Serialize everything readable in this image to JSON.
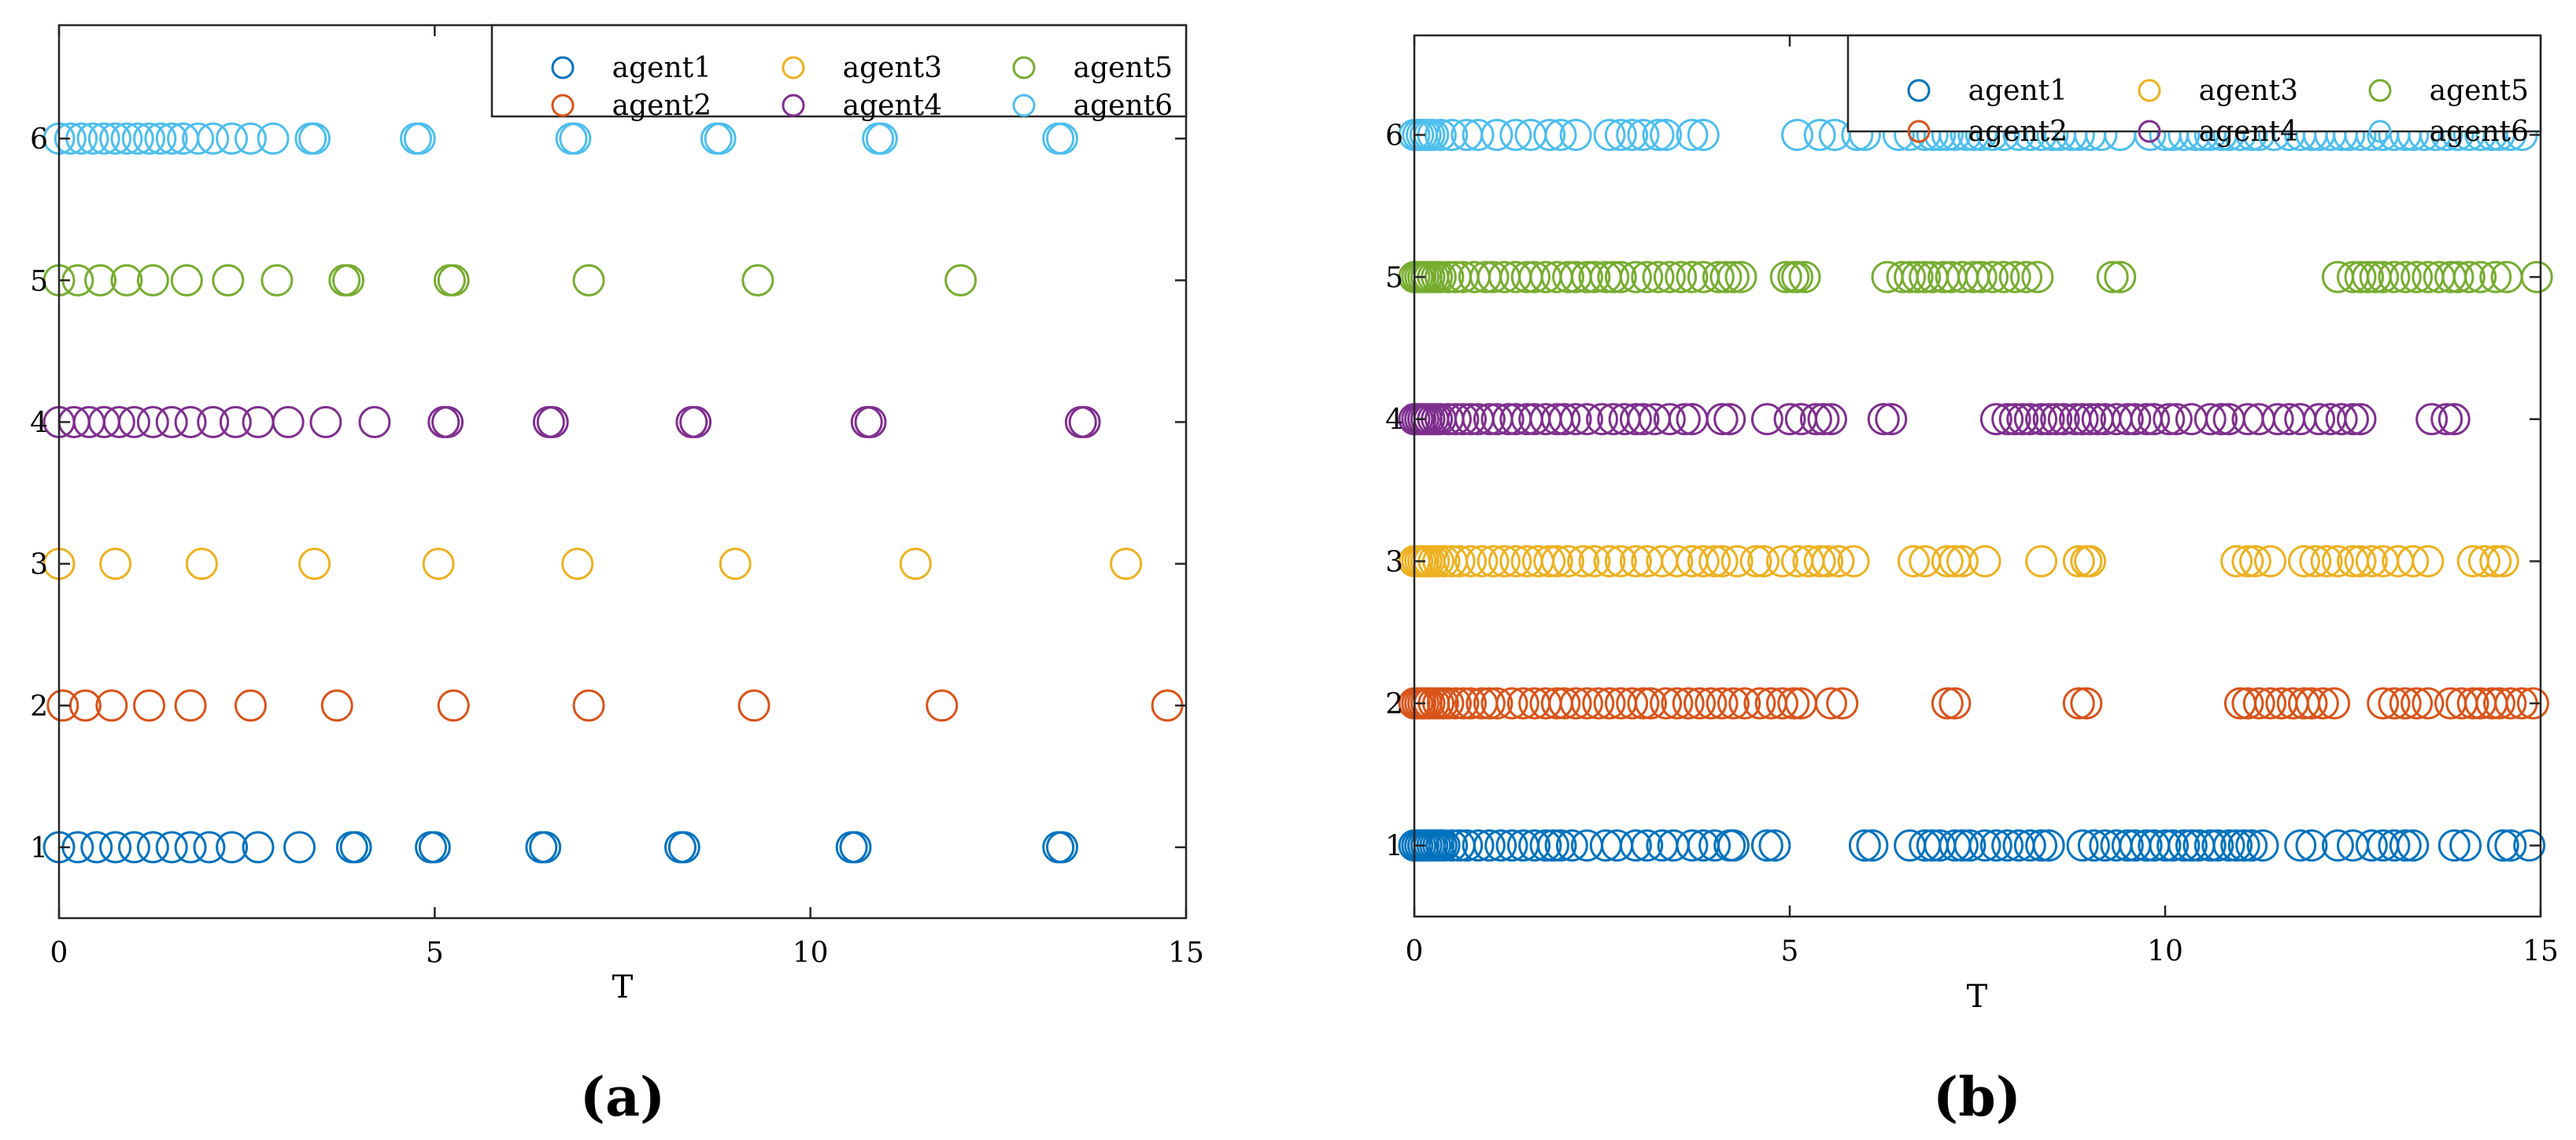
{
  "chart_data": [
    {
      "type": "scatter",
      "panel_label": "(a)",
      "xlabel": "T",
      "ylabel": "",
      "xlim": [
        0,
        15
      ],
      "ylim": [
        0.5,
        6.8
      ],
      "xticks": [
        0,
        5,
        10,
        15
      ],
      "yticks": [
        1,
        2,
        3,
        4,
        5,
        6
      ],
      "grid": false,
      "legend_position": "top-right",
      "series": [
        {
          "name": "agent1",
          "color": "#0072BD",
          "y": 1,
          "x": [
            0.0,
            0.25,
            0.5,
            0.75,
            1.0,
            1.25,
            1.5,
            1.75,
            2.0,
            2.3,
            2.65,
            3.2,
            3.9,
            3.95,
            4.95,
            5.0,
            6.42,
            6.47,
            8.27,
            8.32,
            10.55,
            10.6,
            13.3,
            13.35
          ]
        },
        {
          "name": "agent2",
          "color": "#D95319",
          "y": 2,
          "x": [
            0.05,
            0.35,
            0.7,
            1.2,
            1.75,
            2.55,
            3.7,
            5.25,
            7.05,
            9.25,
            11.75,
            14.75
          ]
        },
        {
          "name": "agent3",
          "color": "#EDB120",
          "y": 3,
          "x": [
            0.0,
            0.75,
            1.9,
            3.4,
            5.05,
            6.9,
            9.0,
            11.4,
            14.2
          ]
        },
        {
          "name": "agent4",
          "color": "#7E2F8E",
          "y": 4,
          "x": [
            0.0,
            0.2,
            0.4,
            0.6,
            0.8,
            1.0,
            1.25,
            1.5,
            1.75,
            2.05,
            2.35,
            2.65,
            3.05,
            3.55,
            4.2,
            5.12,
            5.17,
            6.52,
            6.57,
            8.42,
            8.47,
            10.75,
            10.8,
            13.6,
            13.65
          ]
        },
        {
          "name": "agent5",
          "color": "#77AC30",
          "y": 5,
          "x": [
            0.0,
            0.25,
            0.55,
            0.9,
            1.25,
            1.7,
            2.25,
            2.9,
            3.8,
            3.85,
            5.2,
            5.25,
            7.05,
            9.3,
            12.0
          ]
        },
        {
          "name": "agent6",
          "color": "#4DBEEE",
          "y": 6,
          "x": [
            0.0,
            0.15,
            0.3,
            0.45,
            0.6,
            0.75,
            0.9,
            1.05,
            1.2,
            1.35,
            1.5,
            1.65,
            1.85,
            2.05,
            2.3,
            2.55,
            2.85,
            3.35,
            3.4,
            4.75,
            4.8,
            6.82,
            6.87,
            8.75,
            8.8,
            10.9,
            10.95,
            13.3,
            13.35
          ]
        }
      ]
    },
    {
      "type": "scatter",
      "panel_label": "(b)",
      "xlabel": "T",
      "ylabel": "",
      "xlim": [
        0,
        15
      ],
      "ylim": [
        0.5,
        6.7
      ],
      "xticks": [
        0,
        5,
        10,
        15
      ],
      "yticks": [
        1,
        2,
        3,
        4,
        5,
        6
      ],
      "grid": false,
      "legend_position": "top-right",
      "series": [
        {
          "name": "agent1",
          "color": "#0072BD",
          "y": 1,
          "x": [
            0.0,
            0.04,
            0.08,
            0.12,
            0.16,
            0.2,
            0.24,
            0.28,
            0.32,
            0.36,
            0.4,
            0.5,
            0.6,
            0.7,
            0.85,
            1.0,
            1.15,
            1.3,
            1.45,
            1.6,
            1.75,
            1.85,
            1.95,
            2.1,
            2.3,
            2.55,
            2.7,
            2.95,
            3.1,
            3.3,
            3.45,
            3.7,
            3.85,
            4.0,
            4.2,
            4.25,
            4.7,
            4.8,
            6.0,
            6.1,
            6.6,
            6.8,
            6.9,
            7.0,
            7.2,
            7.3,
            7.4,
            7.6,
            7.75,
            7.9,
            8.05,
            8.2,
            8.35,
            8.45,
            8.9,
            9.05,
            9.2,
            9.35,
            9.5,
            9.6,
            9.75,
            9.85,
            10.0,
            10.1,
            10.25,
            10.35,
            10.45,
            10.6,
            10.7,
            10.85,
            10.95,
            11.05,
            11.15,
            11.3,
            11.8,
            11.95,
            12.3,
            12.5,
            12.75,
            12.9,
            13.05,
            13.2,
            13.3,
            13.85,
            14.0,
            14.5,
            14.6,
            14.85
          ]
        },
        {
          "name": "agent2",
          "color": "#D95319",
          "y": 2,
          "x": [
            0.0,
            0.04,
            0.08,
            0.12,
            0.16,
            0.2,
            0.26,
            0.32,
            0.38,
            0.45,
            0.55,
            0.65,
            0.75,
            0.9,
            1.0,
            1.1,
            1.3,
            1.45,
            1.6,
            1.75,
            1.9,
            2.0,
            2.15,
            2.3,
            2.45,
            2.6,
            2.75,
            2.9,
            3.05,
            3.15,
            3.35,
            3.5,
            3.65,
            3.8,
            3.95,
            4.1,
            4.25,
            4.4,
            4.6,
            4.75,
            4.9,
            5.05,
            5.15,
            5.55,
            5.7,
            7.1,
            7.2,
            8.85,
            8.95,
            11.0,
            11.1,
            11.25,
            11.4,
            11.55,
            11.7,
            11.85,
            11.95,
            12.1,
            12.25,
            12.9,
            13.05,
            13.2,
            13.35,
            13.5,
            13.8,
            13.95,
            14.1,
            14.2,
            14.35,
            14.45,
            14.6,
            14.75,
            14.9
          ]
        },
        {
          "name": "agent3",
          "color": "#EDB120",
          "y": 3,
          "x": [
            0.0,
            0.04,
            0.08,
            0.12,
            0.16,
            0.2,
            0.26,
            0.32,
            0.4,
            0.5,
            0.6,
            0.75,
            0.9,
            1.05,
            1.2,
            1.35,
            1.5,
            1.65,
            1.8,
            1.9,
            2.05,
            2.25,
            2.4,
            2.6,
            2.75,
            2.95,
            3.1,
            3.3,
            3.5,
            3.7,
            3.85,
            4.0,
            4.1,
            4.3,
            4.55,
            4.65,
            4.9,
            5.1,
            5.25,
            5.4,
            5.5,
            5.65,
            5.85,
            6.65,
            6.8,
            7.1,
            7.2,
            7.3,
            7.6,
            8.35,
            8.85,
            8.95,
            9.0,
            10.95,
            11.1,
            11.2,
            11.4,
            11.85,
            12.0,
            12.15,
            12.3,
            12.5,
            12.6,
            12.75,
            12.9,
            13.1,
            13.3,
            13.5,
            14.1,
            14.25,
            14.4,
            14.5
          ]
        },
        {
          "name": "agent4",
          "color": "#7E2F8E",
          "y": 4,
          "x": [
            0.0,
            0.04,
            0.08,
            0.12,
            0.16,
            0.2,
            0.25,
            0.3,
            0.35,
            0.45,
            0.55,
            0.65,
            0.75,
            0.85,
            1.0,
            1.1,
            1.25,
            1.35,
            1.5,
            1.6,
            1.75,
            1.9,
            2.0,
            2.15,
            2.3,
            2.5,
            2.65,
            2.8,
            2.95,
            3.05,
            3.2,
            3.4,
            3.6,
            3.7,
            4.1,
            4.2,
            4.7,
            5.0,
            5.15,
            5.35,
            5.45,
            5.55,
            6.25,
            6.35,
            7.75,
            7.9,
            8.0,
            8.1,
            8.2,
            8.35,
            8.45,
            8.55,
            8.65,
            8.8,
            8.9,
            9.0,
            9.1,
            9.2,
            9.35,
            9.5,
            9.6,
            9.75,
            9.85,
            10.05,
            10.15,
            10.35,
            10.6,
            10.75,
            10.85,
            11.1,
            11.25,
            11.5,
            11.65,
            11.8,
            12.05,
            12.2,
            12.35,
            12.5,
            12.6,
            13.55,
            13.75,
            13.85
          ]
        },
        {
          "name": "agent5",
          "color": "#77AC30",
          "y": 5,
          "x": [
            0.0,
            0.04,
            0.08,
            0.12,
            0.16,
            0.2,
            0.25,
            0.3,
            0.35,
            0.45,
            0.55,
            0.65,
            0.8,
            0.95,
            1.05,
            1.2,
            1.35,
            1.5,
            1.6,
            1.75,
            1.9,
            2.05,
            2.15,
            2.3,
            2.4,
            2.55,
            2.65,
            2.75,
            2.95,
            3.1,
            3.25,
            3.4,
            3.55,
            3.7,
            3.85,
            4.05,
            4.15,
            4.25,
            4.35,
            4.95,
            5.05,
            5.1,
            5.2,
            6.3,
            6.5,
            6.6,
            6.7,
            6.8,
            6.9,
            7.05,
            7.15,
            7.3,
            7.45,
            7.55,
            7.7,
            7.85,
            8.0,
            8.15,
            8.3,
            9.3,
            9.4,
            12.3,
            12.5,
            12.6,
            12.7,
            12.8,
            12.9,
            13.05,
            13.2,
            13.35,
            13.5,
            13.65,
            13.8,
            13.9,
            14.05,
            14.2,
            14.4,
            14.55,
            14.95
          ]
        },
        {
          "name": "agent6",
          "color": "#4DBEEE",
          "y": 6,
          "x": [
            0.0,
            0.05,
            0.1,
            0.15,
            0.2,
            0.25,
            0.35,
            0.5,
            0.7,
            0.85,
            1.1,
            1.35,
            1.55,
            1.8,
            1.95,
            2.15,
            2.6,
            2.75,
            2.9,
            3.05,
            3.25,
            3.35,
            3.7,
            3.85,
            5.1,
            5.4,
            5.6,
            5.9,
            6.0,
            6.45,
            6.6,
            6.8,
            6.9,
            7.0,
            7.1,
            7.2,
            7.35,
            7.45,
            7.55,
            7.7,
            7.85,
            8.05,
            8.2,
            8.35,
            8.5,
            8.6,
            8.75,
            8.85,
            9.0,
            9.15,
            9.4,
            9.8,
            10.0,
            10.1,
            10.25,
            10.4,
            10.5,
            10.6,
            10.75,
            10.85,
            11.0,
            11.15,
            11.25,
            11.45,
            11.65,
            11.8,
            11.95,
            12.05,
            12.2,
            12.35,
            12.45,
            12.6,
            12.75,
            12.9,
            13.05,
            13.2,
            13.3,
            13.45,
            13.6,
            13.75,
            13.9,
            14.05,
            14.2,
            14.35,
            14.45,
            14.6,
            14.75
          ]
        }
      ]
    }
  ]
}
